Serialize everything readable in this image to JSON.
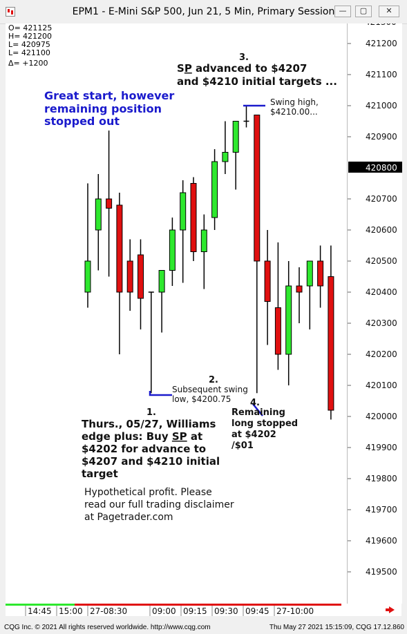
{
  "window": {
    "title": "EPM1 - E-Mini S&P 500, Jun 21, 5 Min, Primary Session",
    "min_glyph": "—",
    "max_glyph": "▢",
    "close_glyph": "✕"
  },
  "ohlc_box": [
    "O=  421125",
    "H=  421200",
    "L=  420975",
    "L=  421100",
    "Δ=    +1200"
  ],
  "price_axis": {
    "labels": [
      "421200",
      "421100",
      "421000",
      "420900",
      "420700",
      "420600",
      "420500",
      "420400",
      "420300",
      "420200",
      "420100",
      "420000",
      "419900",
      "419800",
      "419700",
      "419600",
      "419500"
    ],
    "top_partial_label": "421300",
    "current_price": "420800"
  },
  "time_axis": {
    "labels": [
      "14:45",
      "15:00",
      "27-08:30",
      "09:00",
      "09:15",
      "09:30",
      "09:45",
      "27-10:00"
    ]
  },
  "annotations": {
    "headline": [
      "Great start, however",
      "remaining position",
      "stopped out"
    ],
    "n3_number": "3.",
    "n3_line1_prefix": "S",
    "n3_line1_underlined": "P",
    "n3_line1_suffix": " advanced to $4207",
    "n3_line2": "and $4210 initial targets ...",
    "swing_high": [
      "Swing high,",
      "$4210.00..."
    ],
    "n2_number": "2.",
    "n2_text": [
      "Subsequent swing",
      "low, $4200.75"
    ],
    "n1_number": "1.",
    "n1_line1": "Thurs., 05/27, Williams",
    "n1_line2_prefix": "edge plus: Buy ",
    "n1_line2_underlined": "SP",
    "n1_line2_suffix": " at",
    "n1_line3": "$4202 for advance to",
    "n1_line4": "$4207 and $4210 initial",
    "n1_line5": "target",
    "n4_number": "4.",
    "n4_text": [
      "Remaining",
      "long stopped",
      "at $4202",
      "/$01"
    ],
    "disclaimer": [
      "Hypothetical profit. Please",
      "read our full trading disclaimer",
      "at Pagetrader.com"
    ]
  },
  "colors": {
    "up": "#2ee82e",
    "down": "#e01010",
    "headline": "#1a1acc",
    "marker_line": "#1a1acc"
  },
  "footer": {
    "left": "CQG Inc. © 2021 All rights reserved worldwide. http://www.cqg.com",
    "right": "Thu May 27 2021 15:15:09, CQG 17.12.860"
  },
  "chart_data": {
    "type": "candlestick",
    "y_range": [
      419400,
      421300
    ],
    "candles": [
      {
        "o": 420400,
        "h": 420750,
        "l": 420350,
        "c": 420500
      },
      {
        "o": 420600,
        "h": 420780,
        "l": 420470,
        "c": 420700
      },
      {
        "o": 420700,
        "h": 420920,
        "l": 420450,
        "c": 420670
      },
      {
        "o": 420680,
        "h": 420720,
        "l": 420200,
        "c": 420400
      },
      {
        "o": 420500,
        "h": 420570,
        "l": 420340,
        "c": 420400
      },
      {
        "o": 420520,
        "h": 420570,
        "l": 420280,
        "c": 420380
      },
      {
        "o": 420400,
        "h": 420400,
        "l": 420075,
        "c": 420400
      },
      {
        "o": 420400,
        "h": 420470,
        "l": 420270,
        "c": 420470
      },
      {
        "o": 420470,
        "h": 420640,
        "l": 420420,
        "c": 420600
      },
      {
        "o": 420600,
        "h": 420760,
        "l": 420430,
        "c": 420720
      },
      {
        "o": 420750,
        "h": 420770,
        "l": 420500,
        "c": 420530
      },
      {
        "o": 420530,
        "h": 420650,
        "l": 420410,
        "c": 420600
      },
      {
        "o": 420640,
        "h": 420860,
        "l": 420600,
        "c": 420820
      },
      {
        "o": 420820,
        "h": 420950,
        "l": 420780,
        "c": 420850
      },
      {
        "o": 420850,
        "h": 420950,
        "l": 420730,
        "c": 420950
      },
      {
        "o": 420950,
        "h": 421000,
        "l": 420930,
        "c": 420950
      },
      {
        "o": 420970,
        "h": 420970,
        "l": 420075,
        "c": 420500
      },
      {
        "o": 420500,
        "h": 420600,
        "l": 420230,
        "c": 420370
      },
      {
        "o": 420350,
        "h": 420560,
        "l": 420150,
        "c": 420200
      },
      {
        "o": 420200,
        "h": 420500,
        "l": 420100,
        "c": 420420
      },
      {
        "o": 420420,
        "h": 420480,
        "l": 420300,
        "c": 420400
      },
      {
        "o": 420420,
        "h": 420500,
        "l": 420280,
        "c": 420500
      },
      {
        "o": 420500,
        "h": 420550,
        "l": 420350,
        "c": 420420
      },
      {
        "o": 420450,
        "h": 420550,
        "l": 419990,
        "c": 420020
      }
    ]
  }
}
